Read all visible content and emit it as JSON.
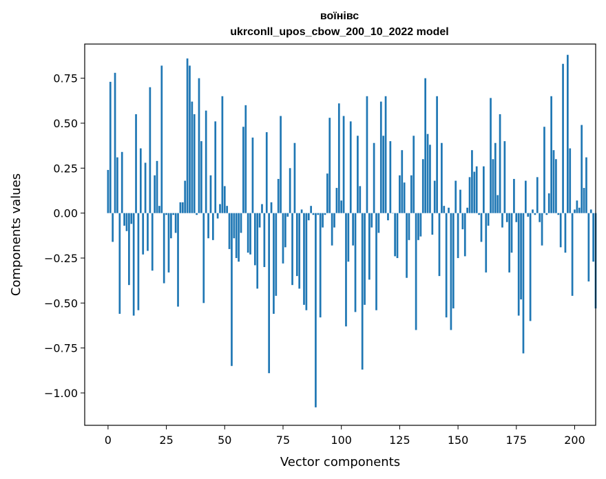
{
  "chart_data": {
    "type": "bar",
    "title_line1": "воїнівс",
    "title_line2": "ukrconll_upos_cbow_200_10_2022 model",
    "xlabel": "Vector components",
    "ylabel": "Components values",
    "xlim": [
      -10,
      209
    ],
    "ylim": [
      -1.18,
      0.94
    ],
    "xticks": [
      0,
      25,
      50,
      75,
      100,
      125,
      150,
      175,
      200
    ],
    "yticks": [
      -1.0,
      -0.75,
      -0.5,
      -0.25,
      0.0,
      0.25,
      0.5,
      0.75
    ],
    "ytick_labels": [
      "−1.00",
      "−0.75",
      "−0.50",
      "−0.25",
      "0.00",
      "0.25",
      "0.50",
      "0.75"
    ],
    "bar_color": "#1f77b4",
    "grid": false,
    "values": [
      0.24,
      0.73,
      -0.16,
      0.78,
      0.31,
      -0.56,
      0.34,
      -0.07,
      -0.1,
      -0.4,
      -0.06,
      -0.57,
      0.55,
      -0.54,
      0.36,
      -0.23,
      0.28,
      -0.21,
      0.7,
      -0.32,
      0.21,
      0.29,
      0.04,
      0.82,
      -0.39,
      -0.01,
      -0.33,
      -0.14,
      -0.01,
      -0.11,
      -0.52,
      0.06,
      0.06,
      0.18,
      0.86,
      0.82,
      0.62,
      0.55,
      -0.01,
      0.75,
      0.4,
      -0.5,
      0.57,
      -0.14,
      0.21,
      -0.15,
      0.51,
      -0.03,
      0.05,
      0.65,
      0.15,
      0.04,
      -0.2,
      -0.85,
      -0.14,
      -0.25,
      -0.27,
      -0.11,
      0.48,
      0.6,
      -0.22,
      -0.23,
      0.42,
      -0.29,
      -0.42,
      -0.08,
      0.05,
      -0.3,
      0.45,
      -0.89,
      0.06,
      -0.56,
      -0.46,
      0.19,
      0.54,
      -0.28,
      -0.19,
      -0.02,
      0.25,
      -0.4,
      0.39,
      -0.35,
      -0.42,
      0.02,
      -0.51,
      -0.54,
      -0.04,
      0.04,
      -0.01,
      -1.08,
      -0.01,
      -0.58,
      -0.08,
      -0.01,
      0.22,
      0.53,
      -0.18,
      -0.08,
      0.14,
      0.61,
      0.07,
      0.54,
      -0.63,
      -0.27,
      0.51,
      -0.18,
      -0.55,
      0.43,
      0.15,
      -0.87,
      -0.51,
      0.65,
      -0.37,
      -0.08,
      0.39,
      -0.54,
      -0.11,
      0.62,
      0.43,
      0.65,
      -0.04,
      0.4,
      0.0,
      -0.24,
      -0.25,
      0.21,
      0.35,
      0.17,
      -0.36,
      -0.15,
      0.21,
      0.43,
      -0.65,
      -0.15,
      -0.13,
      0.3,
      0.75,
      0.44,
      0.38,
      -0.12,
      0.18,
      0.65,
      -0.35,
      0.39,
      0.04,
      -0.58,
      0.03,
      -0.65,
      -0.53,
      0.18,
      -0.25,
      0.13,
      -0.09,
      -0.24,
      0.03,
      0.2,
      0.35,
      0.23,
      0.26,
      -0.01,
      -0.16,
      0.26,
      -0.33,
      -0.07,
      0.64,
      0.3,
      0.39,
      0.1,
      0.55,
      -0.08,
      0.4,
      -0.05,
      -0.33,
      -0.22,
      0.19,
      -0.05,
      -0.57,
      -0.48,
      -0.78,
      0.18,
      -0.02,
      -0.6,
      0.02,
      -0.01,
      0.2,
      -0.05,
      -0.18,
      0.48,
      -0.01,
      0.11,
      0.65,
      0.35,
      0.3,
      -0.01,
      -0.19,
      0.83,
      -0.22,
      0.88,
      0.36,
      -0.46,
      0.02,
      0.07,
      0.03,
      0.49,
      0.14,
      0.31,
      -0.38,
      0.02,
      -0.27,
      -0.53
    ]
  }
}
